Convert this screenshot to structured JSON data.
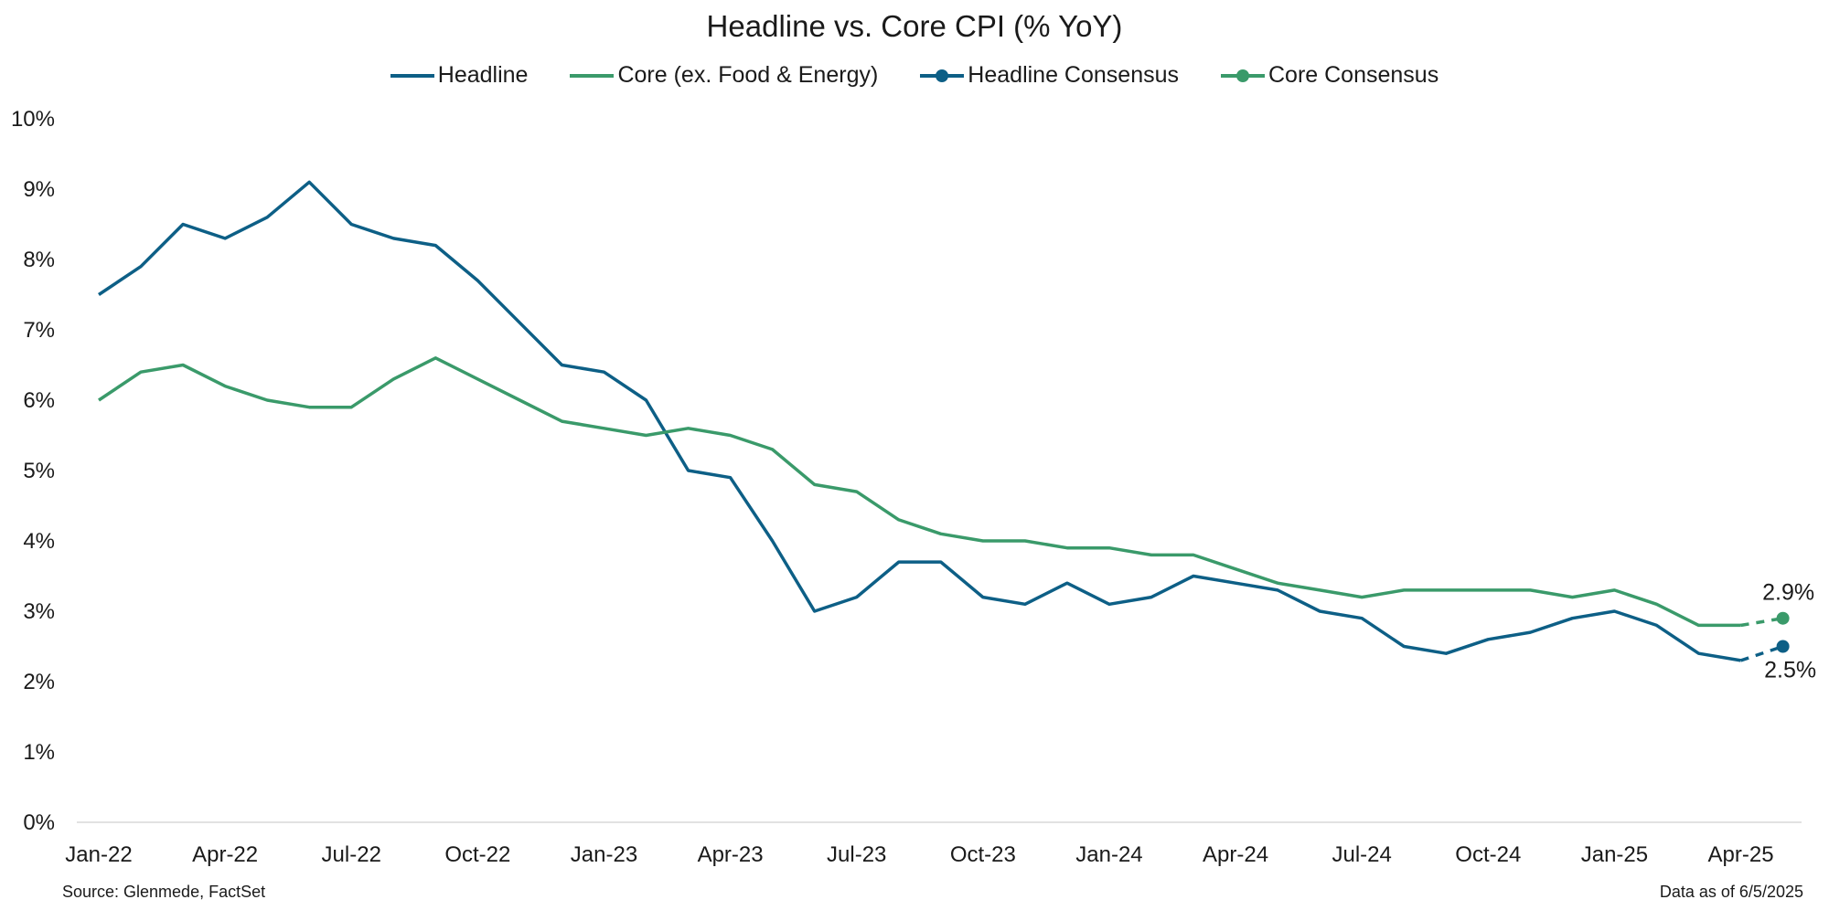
{
  "chart_data": {
    "type": "line",
    "title": "Headline vs. Core CPI (% YoY)",
    "xlabel": "",
    "ylabel": "",
    "ylim": [
      0,
      10
    ],
    "y_ticks": [
      "0%",
      "1%",
      "2%",
      "3%",
      "4%",
      "5%",
      "6%",
      "7%",
      "8%",
      "9%",
      "10%"
    ],
    "x_tick_labels": [
      "Jan-22",
      "Apr-22",
      "Jul-22",
      "Oct-22",
      "Jan-23",
      "Apr-23",
      "Jul-23",
      "Oct-23",
      "Jan-24",
      "Apr-24",
      "Jul-24",
      "Oct-24",
      "Jan-25",
      "Apr-25"
    ],
    "x": [
      "Jan-22",
      "Feb-22",
      "Mar-22",
      "Apr-22",
      "May-22",
      "Jun-22",
      "Jul-22",
      "Aug-22",
      "Sep-22",
      "Oct-22",
      "Nov-22",
      "Dec-22",
      "Jan-23",
      "Feb-23",
      "Mar-23",
      "Apr-23",
      "May-23",
      "Jun-23",
      "Jul-23",
      "Aug-23",
      "Sep-23",
      "Oct-23",
      "Nov-23",
      "Dec-23",
      "Jan-24",
      "Feb-24",
      "Mar-24",
      "Apr-24",
      "May-24",
      "Jun-24",
      "Jul-24",
      "Aug-24",
      "Sep-24",
      "Oct-24",
      "Nov-24",
      "Dec-24",
      "Jan-25",
      "Feb-25",
      "Mar-25",
      "Apr-25",
      "May-25"
    ],
    "grid": false,
    "legend": "top-center",
    "series": [
      {
        "name": "Headline",
        "color": "#0d5f86",
        "style": "solid",
        "values": [
          7.5,
          7.9,
          8.5,
          8.3,
          8.6,
          9.1,
          8.5,
          8.3,
          8.2,
          7.7,
          7.1,
          6.5,
          6.4,
          6.0,
          5.0,
          4.9,
          4.0,
          3.0,
          3.2,
          3.7,
          3.7,
          3.2,
          3.1,
          3.4,
          3.1,
          3.2,
          3.5,
          3.4,
          3.3,
          3.0,
          2.9,
          2.5,
          2.4,
          2.6,
          2.7,
          2.9,
          3.0,
          2.8,
          2.4,
          2.3,
          null
        ]
      },
      {
        "name": "Core (ex. Food & Energy)",
        "color": "#3a9a6a",
        "style": "solid",
        "values": [
          6.0,
          6.4,
          6.5,
          6.2,
          6.0,
          5.9,
          5.9,
          6.3,
          6.6,
          6.3,
          6.0,
          5.7,
          5.6,
          5.5,
          5.6,
          5.5,
          5.3,
          4.8,
          4.7,
          4.3,
          4.1,
          4.0,
          4.0,
          3.9,
          3.9,
          3.8,
          3.8,
          3.6,
          3.4,
          3.3,
          3.2,
          3.3,
          3.3,
          3.3,
          3.3,
          3.2,
          3.3,
          3.1,
          2.8,
          2.8,
          null
        ]
      },
      {
        "name": "Headline Consensus",
        "color": "#0d5f86",
        "style": "dashed-marker",
        "values": [
          null,
          null,
          null,
          null,
          null,
          null,
          null,
          null,
          null,
          null,
          null,
          null,
          null,
          null,
          null,
          null,
          null,
          null,
          null,
          null,
          null,
          null,
          null,
          null,
          null,
          null,
          null,
          null,
          null,
          null,
          null,
          null,
          null,
          null,
          null,
          null,
          null,
          null,
          null,
          2.3,
          2.5
        ]
      },
      {
        "name": "Core Consensus",
        "color": "#3a9a6a",
        "style": "dashed-marker",
        "values": [
          null,
          null,
          null,
          null,
          null,
          null,
          null,
          null,
          null,
          null,
          null,
          null,
          null,
          null,
          null,
          null,
          null,
          null,
          null,
          null,
          null,
          null,
          null,
          null,
          null,
          null,
          null,
          null,
          null,
          null,
          null,
          null,
          null,
          null,
          null,
          null,
          null,
          null,
          null,
          2.8,
          2.9
        ]
      }
    ],
    "annotations": [
      "2.9%",
      "2.5%"
    ]
  },
  "legend": [
    {
      "label": "Headline",
      "color": "#0d5f86",
      "marker": false
    },
    {
      "label": "Core (ex. Food & Energy)",
      "color": "#3a9a6a",
      "marker": false
    },
    {
      "label": "Headline Consensus",
      "color": "#0d5f86",
      "marker": true
    },
    {
      "label": "Core Consensus",
      "color": "#3a9a6a",
      "marker": true
    }
  ],
  "footer": {
    "source": "Source: Glenmede, FactSet",
    "data_as_of": "Data as of 6/5/2025"
  }
}
